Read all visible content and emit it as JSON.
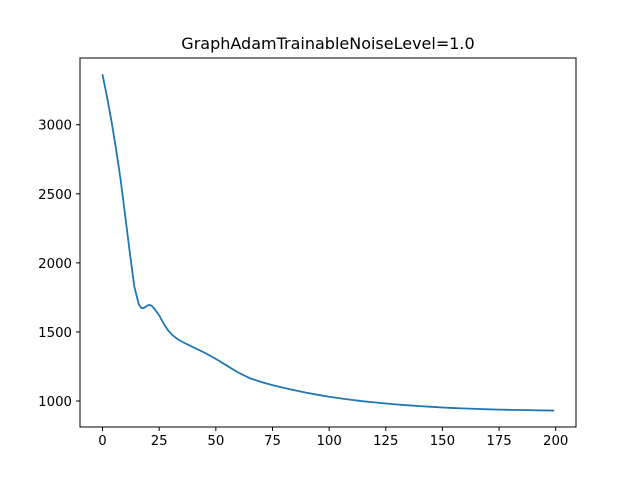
{
  "chart_data": {
    "type": "line",
    "title": "GraphAdamTrainableNoiseLevel=1.0",
    "xlabel": "",
    "ylabel": "",
    "xlim": [
      -9.95,
      208.95
    ],
    "ylim": [
      812,
      3483
    ],
    "xticks": [
      0,
      25,
      50,
      75,
      100,
      125,
      150,
      175,
      200
    ],
    "yticks": [
      1000,
      1500,
      2000,
      2500,
      3000
    ],
    "grid": false,
    "legend": "none",
    "series": [
      {
        "color": "#1f77b4",
        "points": [
          [
            0,
            3360
          ],
          [
            2,
            3200
          ],
          [
            4,
            3020
          ],
          [
            6,
            2820
          ],
          [
            8,
            2600
          ],
          [
            10,
            2340
          ],
          [
            12,
            2080
          ],
          [
            14,
            1830
          ],
          [
            16,
            1700
          ],
          [
            17,
            1675
          ],
          [
            18,
            1672
          ],
          [
            19,
            1682
          ],
          [
            20,
            1693
          ],
          [
            21,
            1695
          ],
          [
            22,
            1685
          ],
          [
            23,
            1665
          ],
          [
            25,
            1620
          ],
          [
            27,
            1560
          ],
          [
            29,
            1510
          ],
          [
            31,
            1475
          ],
          [
            33,
            1450
          ],
          [
            35,
            1430
          ],
          [
            38,
            1405
          ],
          [
            40,
            1390
          ],
          [
            45,
            1350
          ],
          [
            50,
            1305
          ],
          [
            55,
            1255
          ],
          [
            60,
            1205
          ],
          [
            65,
            1165
          ],
          [
            70,
            1138
          ],
          [
            75,
            1115
          ],
          [
            80,
            1095
          ],
          [
            85,
            1077
          ],
          [
            90,
            1060
          ],
          [
            95,
            1045
          ],
          [
            100,
            1031
          ],
          [
            105,
            1019
          ],
          [
            110,
            1008
          ],
          [
            115,
            998
          ],
          [
            120,
            990
          ],
          [
            125,
            982
          ],
          [
            130,
            975
          ],
          [
            135,
            969
          ],
          [
            140,
            963
          ],
          [
            145,
            958
          ],
          [
            150,
            953
          ],
          [
            155,
            949
          ],
          [
            160,
            946
          ],
          [
            165,
            943
          ],
          [
            170,
            940
          ],
          [
            175,
            938
          ],
          [
            180,
            936
          ],
          [
            185,
            935
          ],
          [
            190,
            933
          ],
          [
            195,
            932
          ],
          [
            199,
            931
          ]
        ]
      }
    ]
  }
}
